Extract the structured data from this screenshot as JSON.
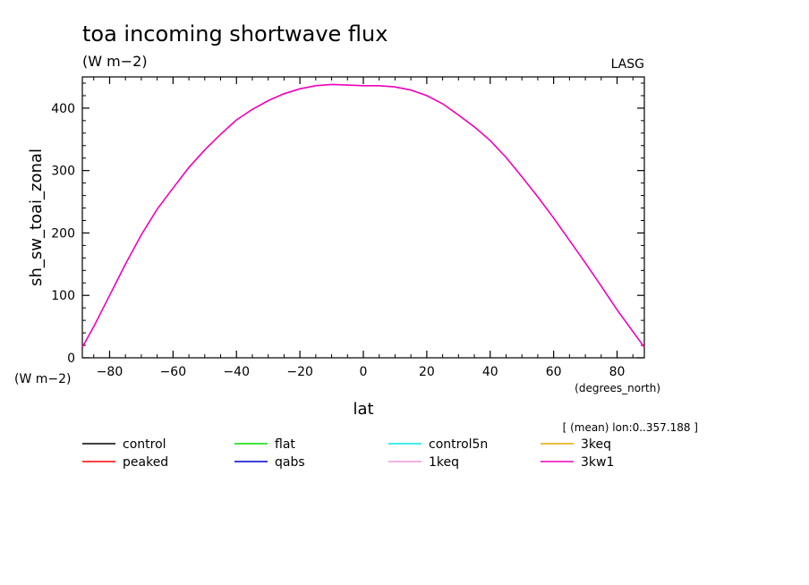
{
  "chart_data": {
    "type": "line",
    "title": "toa incoming shortwave flux",
    "subtitle": "(W m−2)",
    "source_label": "LASG",
    "xlabel": "lat",
    "ylabel": "sh_sw_toai_zonal",
    "x_units": "(degrees_north)",
    "y_units": "(W m−2)",
    "note": "[ (mean) lon:0..357.188 ]",
    "xlim": [
      -88.6,
      88.6
    ],
    "ylim": [
      0,
      450
    ],
    "x_ticks": [
      -80,
      -60,
      -40,
      -20,
      0,
      20,
      40,
      60,
      80
    ],
    "x_tick_labels": [
      "−80",
      "−60",
      "−40",
      "−20",
      "0",
      "20",
      "40",
      "60",
      "80"
    ],
    "y_ticks": [
      0,
      100,
      200,
      300,
      400
    ],
    "y_tick_labels": [
      "0",
      "100",
      "200",
      "300",
      "400"
    ],
    "grid": false,
    "legend_position": "bottom",
    "x": [
      -88.6,
      -85,
      -80,
      -75,
      -70,
      -65,
      -60,
      -55,
      -50,
      -45,
      -40,
      -35,
      -30,
      -25,
      -20,
      -15,
      -10,
      -5,
      0,
      5,
      10,
      15,
      20,
      25,
      30,
      35,
      40,
      45,
      50,
      55,
      60,
      65,
      70,
      75,
      80,
      85,
      88.6
    ],
    "series": [
      {
        "name": "control",
        "color": "#000000"
      },
      {
        "name": "peaked",
        "color": "#ff0000"
      },
      {
        "name": "flat",
        "color": "#00dd00"
      },
      {
        "name": "qabs",
        "color": "#0000cc"
      },
      {
        "name": "control5n",
        "color": "#00e8e8"
      },
      {
        "name": "1keq",
        "color": "#ee99dd"
      },
      {
        "name": "3keq",
        "color": "#e6a800"
      },
      {
        "name": "3kw1",
        "color": "#ee00bb",
        "values": [
          17,
          50,
          100,
          150,
          197,
          238,
          272,
          305,
          333,
          358,
          381,
          398,
          412,
          423,
          431,
          436,
          438,
          437,
          436,
          436,
          434,
          429,
          420,
          407,
          389,
          370,
          348,
          321,
          290,
          258,
          224,
          188,
          152,
          115,
          77,
          42,
          17
        ]
      }
    ]
  }
}
